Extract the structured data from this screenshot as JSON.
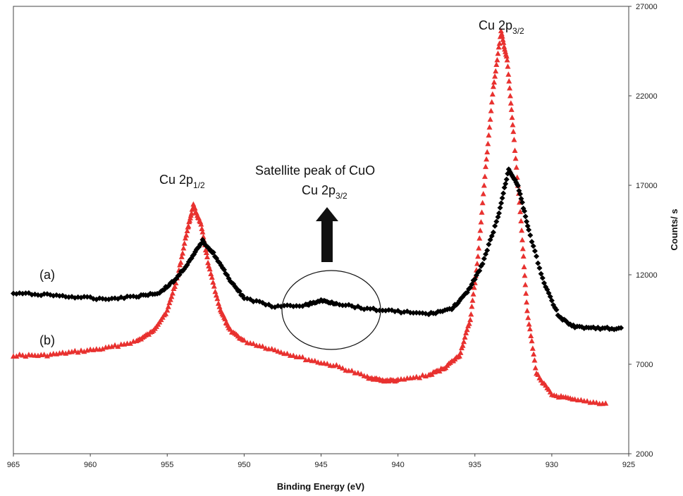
{
  "chart_data": {
    "type": "scatter",
    "xlabel": "Binding Energy (eV)",
    "ylabel": "Counts/ s",
    "xlim": [
      965,
      925
    ],
    "ylim": [
      2000,
      27000
    ],
    "x_ticks": [
      965,
      960,
      955,
      950,
      945,
      940,
      935,
      930,
      925
    ],
    "y_ticks": [
      2000,
      7000,
      12000,
      17000,
      22000,
      27000
    ],
    "y_axis_side": "right",
    "grid": false,
    "series": [
      {
        "name": "(a)",
        "marker": "diamond",
        "color": "#000000",
        "points": [
          [
            965,
            10950
          ],
          [
            963,
            10900
          ],
          [
            961,
            10750
          ],
          [
            959,
            10650
          ],
          [
            957,
            10800
          ],
          [
            955.5,
            11000
          ],
          [
            954.5,
            11700
          ],
          [
            953.5,
            12800
          ],
          [
            952.7,
            13900
          ],
          [
            952,
            13200
          ],
          [
            951,
            11800
          ],
          [
            950,
            10700
          ],
          [
            948,
            10200
          ],
          [
            946,
            10300
          ],
          [
            945,
            10550
          ],
          [
            944,
            10400
          ],
          [
            942,
            10100
          ],
          [
            940,
            9950
          ],
          [
            938,
            9800
          ],
          [
            936.5,
            10100
          ],
          [
            935.5,
            11000
          ],
          [
            934.5,
            12600
          ],
          [
            933.5,
            15200
          ],
          [
            932.8,
            17900
          ],
          [
            932.2,
            17000
          ],
          [
            931.5,
            14500
          ],
          [
            930.5,
            11500
          ],
          [
            929.5,
            9600
          ],
          [
            928.5,
            9100
          ],
          [
            927,
            9000
          ],
          [
            925.5,
            9000
          ]
        ]
      },
      {
        "name": "(b)",
        "marker": "triangle",
        "color": "#e8312f",
        "points": [
          [
            965,
            7500
          ],
          [
            963,
            7500
          ],
          [
            961,
            7700
          ],
          [
            959,
            7900
          ],
          [
            957,
            8300
          ],
          [
            956,
            8800
          ],
          [
            955,
            10000
          ],
          [
            954.3,
            12000
          ],
          [
            953.7,
            14500
          ],
          [
            953.3,
            15900
          ],
          [
            952.8,
            14800
          ],
          [
            952.3,
            12500
          ],
          [
            951.6,
            10200
          ],
          [
            951,
            9000
          ],
          [
            950,
            8300
          ],
          [
            948,
            7800
          ],
          [
            946,
            7300
          ],
          [
            944,
            6900
          ],
          [
            942,
            6300
          ],
          [
            941,
            6100
          ],
          [
            940,
            6100
          ],
          [
            938,
            6400
          ],
          [
            937,
            6800
          ],
          [
            936,
            7500
          ],
          [
            935.3,
            9500
          ],
          [
            934.8,
            13000
          ],
          [
            934.3,
            18000
          ],
          [
            933.8,
            22500
          ],
          [
            933.3,
            25600
          ],
          [
            932.9,
            24000
          ],
          [
            932.5,
            20000
          ],
          [
            932,
            15000
          ],
          [
            931.6,
            10000
          ],
          [
            931,
            6500
          ],
          [
            930,
            5300
          ],
          [
            928.5,
            5000
          ],
          [
            926.5,
            4800
          ]
        ]
      }
    ],
    "annotations": {
      "peak_right_main": "Cu 2p",
      "peak_right_sub": "3/2",
      "peak_left_main": "Cu 2p",
      "peak_left_sub": "1/2",
      "satellite_line1": "Satellite peak of CuO",
      "satellite_line2_main": "Cu 2p",
      "satellite_line2_sub": "3/2",
      "curve_a_label": "(a)",
      "curve_b_label": "(b)"
    }
  }
}
